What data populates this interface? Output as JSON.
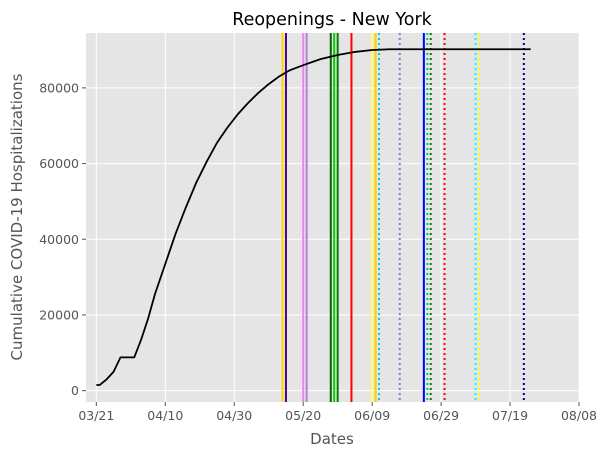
{
  "chart_data": {
    "type": "line",
    "title": "Reopenings - New York",
    "xlabel": "Dates",
    "ylabel": "Cumulative COVID-19 Hospitalizations",
    "x_ticks": [
      "03/21",
      "04/10",
      "04/30",
      "05/20",
      "06/09",
      "06/29",
      "07/19",
      "08/08"
    ],
    "y_ticks": [
      "0",
      "20000",
      "40000",
      "60000",
      "80000"
    ],
    "xlim": [
      "2020-03-18",
      "2020-08-08"
    ],
    "ylim": [
      -3000,
      94500
    ],
    "grid": true,
    "background": "#e5e5e5",
    "series": [
      {
        "color": "#000000",
        "points": [
          [
            "2020-03-21",
            1500
          ],
          [
            "2020-03-22",
            1500
          ],
          [
            "2020-03-24",
            3000
          ],
          [
            "2020-03-26",
            5000
          ],
          [
            "2020-03-28",
            8800
          ],
          [
            "2020-03-30",
            8800
          ],
          [
            "2020-04-01",
            8800
          ],
          [
            "2020-04-03",
            13500
          ],
          [
            "2020-04-05",
            19000
          ],
          [
            "2020-04-07",
            25500
          ],
          [
            "2020-04-10",
            33500
          ],
          [
            "2020-04-13",
            41500
          ],
          [
            "2020-04-16",
            48500
          ],
          [
            "2020-04-19",
            55000
          ],
          [
            "2020-04-22",
            60500
          ],
          [
            "2020-04-25",
            65500
          ],
          [
            "2020-04-28",
            69500
          ],
          [
            "2020-05-01",
            73000
          ],
          [
            "2020-05-04",
            76000
          ],
          [
            "2020-05-07",
            78700
          ],
          [
            "2020-05-10",
            81000
          ],
          [
            "2020-05-13",
            83000
          ],
          [
            "2020-05-16",
            84600
          ],
          [
            "2020-05-20",
            86000
          ],
          [
            "2020-05-25",
            87600
          ],
          [
            "2020-05-30",
            88700
          ],
          [
            "2020-06-04",
            89500
          ],
          [
            "2020-06-09",
            90000
          ],
          [
            "2020-06-14",
            90200
          ],
          [
            "2020-06-29",
            90200
          ],
          [
            "2020-07-19",
            90200
          ],
          [
            "2020-07-25",
            90200
          ]
        ]
      }
    ],
    "vertical_lines": [
      {
        "x": "2020-05-14",
        "color": "#ffd700",
        "style": "solid"
      },
      {
        "x": "2020-05-15",
        "color": "#4b0082",
        "style": "solid"
      },
      {
        "x": "2020-05-20",
        "color": "#ee82ee",
        "style": "solid"
      },
      {
        "x": "2020-05-21",
        "color": "#b57edc",
        "style": "solid"
      },
      {
        "x": "2020-05-28",
        "color": "#006400",
        "style": "solid"
      },
      {
        "x": "2020-05-29",
        "color": "#00cc00",
        "style": "solid"
      },
      {
        "x": "2020-05-30",
        "color": "#008000",
        "style": "solid"
      },
      {
        "x": "2020-06-03",
        "color": "#ff0000",
        "style": "solid"
      },
      {
        "x": "2020-06-09",
        "color": "#ffff66",
        "style": "solid"
      },
      {
        "x": "2020-06-10",
        "color": "#ffcc00",
        "style": "solid"
      },
      {
        "x": "2020-06-11",
        "color": "#00ced1",
        "style": "dotted"
      },
      {
        "x": "2020-06-17",
        "color": "#9370db",
        "style": "dotted"
      },
      {
        "x": "2020-06-24",
        "color": "#0000ff",
        "style": "solid"
      },
      {
        "x": "2020-06-25",
        "color": "#00cc66",
        "style": "dotted"
      },
      {
        "x": "2020-06-26",
        "color": "#008000",
        "style": "dotted"
      },
      {
        "x": "2020-06-30",
        "color": "#ff0000",
        "style": "dotted"
      },
      {
        "x": "2020-07-09",
        "color": "#00ffff",
        "style": "dotted"
      },
      {
        "x": "2020-07-10",
        "color": "#ffff00",
        "style": "dotted"
      },
      {
        "x": "2020-07-23",
        "color": "#00008b",
        "style": "dotted"
      }
    ]
  }
}
